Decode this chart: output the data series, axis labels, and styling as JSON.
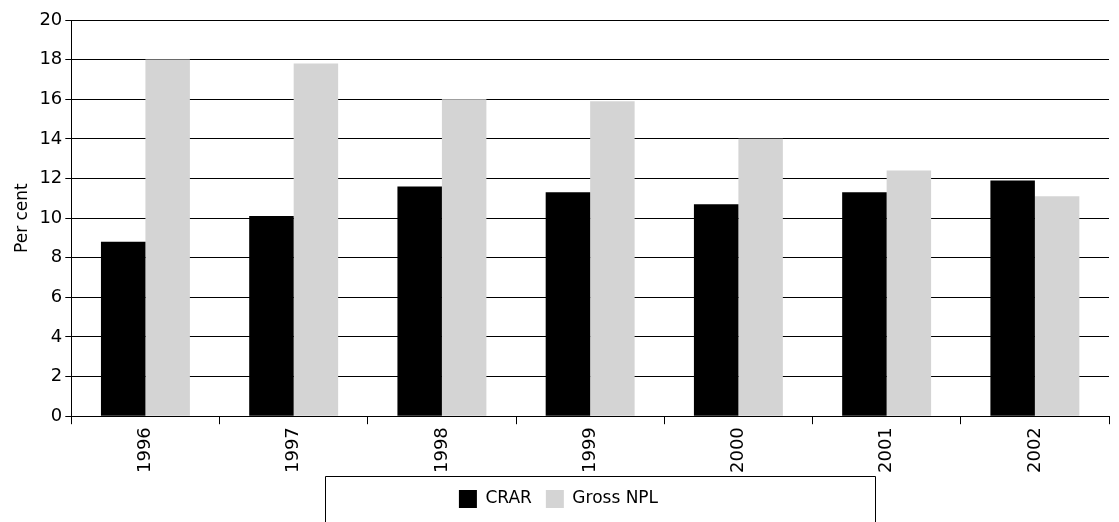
{
  "chart_data": {
    "type": "bar",
    "ylabel": "Per cent",
    "categories": [
      "1996",
      "1997",
      "1998",
      "1999",
      "2000",
      "2001",
      "2002"
    ],
    "series": [
      {
        "name": "CRAR",
        "color": "#000000",
        "values": [
          8.8,
          10.1,
          11.6,
          11.3,
          10.7,
          11.3,
          11.9
        ]
      },
      {
        "name": "Gross NPL",
        "color": "#d4d4d4",
        "values": [
          18.0,
          17.8,
          16.0,
          15.9,
          14.0,
          12.4,
          11.1
        ]
      }
    ],
    "ylim": [
      0,
      20
    ],
    "yticks": [
      0,
      2,
      4,
      6,
      8,
      10,
      12,
      14,
      16,
      18,
      20
    ],
    "grid": "y",
    "legend": "bottom"
  }
}
